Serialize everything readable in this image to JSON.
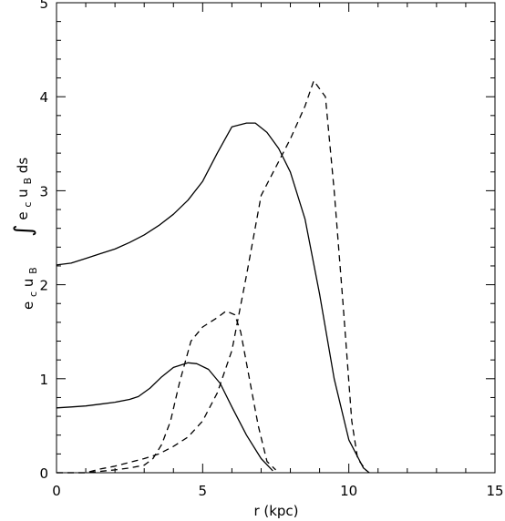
{
  "chart_data": {
    "type": "line",
    "xlabel": "r (kpc)",
    "ylabel_top": {
      "integral": "∫",
      "e": "e",
      "e_sub": "c",
      "u": "u",
      "u_sub": "B",
      "ds": "ds"
    },
    "ylabel_bottom": {
      "e": "e",
      "e_sub": "c",
      "u": "u",
      "u_sub": "B"
    },
    "xlim": [
      0,
      15
    ],
    "ylim": [
      0,
      5
    ],
    "xticks": [
      0,
      5,
      10,
      15
    ],
    "yticks": [
      0,
      1,
      2,
      3,
      4,
      5
    ],
    "grid": false,
    "series": [
      {
        "style": "solid",
        "x": [
          0,
          0.5,
          1,
          1.5,
          2,
          2.5,
          3,
          3.5,
          4,
          4.5,
          5,
          5.5,
          6,
          6.5,
          6.8,
          7.2,
          7.6,
          8,
          8.5,
          9,
          9.5,
          10,
          10.5,
          10.7
        ],
        "y": [
          2.21,
          2.23,
          2.28,
          2.33,
          2.38,
          2.45,
          2.53,
          2.63,
          2.75,
          2.9,
          3.1,
          3.4,
          3.68,
          3.72,
          3.72,
          3.62,
          3.45,
          3.2,
          2.7,
          1.9,
          1.0,
          0.35,
          0.05,
          0.0
        ]
      },
      {
        "style": "dashed",
        "x": [
          0,
          1,
          1.5,
          2,
          2.5,
          3,
          3.5,
          4,
          4.5,
          5,
          5.5,
          6,
          6.5,
          7,
          7.5,
          8,
          8.5,
          8.8,
          9.2,
          9.5,
          9.8,
          10.1,
          10.3,
          10.6
        ],
        "y": [
          0.0,
          0.0,
          0.04,
          0.07,
          0.11,
          0.15,
          0.2,
          0.28,
          0.38,
          0.55,
          0.85,
          1.3,
          2.1,
          2.95,
          3.25,
          3.55,
          3.9,
          4.17,
          4.0,
          3.0,
          1.8,
          0.55,
          0.15,
          0.02
        ]
      },
      {
        "style": "solid",
        "x": [
          0,
          0.5,
          1,
          1.5,
          2,
          2.5,
          2.8,
          3.2,
          3.6,
          4,
          4.5,
          4.8,
          5.2,
          5.6,
          6,
          6.5,
          7,
          7.4
        ],
        "y": [
          0.69,
          0.7,
          0.71,
          0.73,
          0.75,
          0.78,
          0.81,
          0.9,
          1.02,
          1.12,
          1.17,
          1.16,
          1.1,
          0.95,
          0.7,
          0.4,
          0.15,
          0.02
        ]
      },
      {
        "style": "dashed",
        "x": [
          0,
          1,
          2,
          2.5,
          3,
          3.3,
          3.6,
          3.9,
          4.2,
          4.6,
          5,
          5.5,
          5.8,
          6.1,
          6.3,
          6.6,
          6.9,
          7.2,
          7.5
        ],
        "y": [
          0.0,
          0.0,
          0.03,
          0.05,
          0.08,
          0.15,
          0.3,
          0.55,
          0.95,
          1.4,
          1.55,
          1.65,
          1.72,
          1.68,
          1.5,
          1.0,
          0.5,
          0.12,
          0.03
        ]
      }
    ]
  }
}
